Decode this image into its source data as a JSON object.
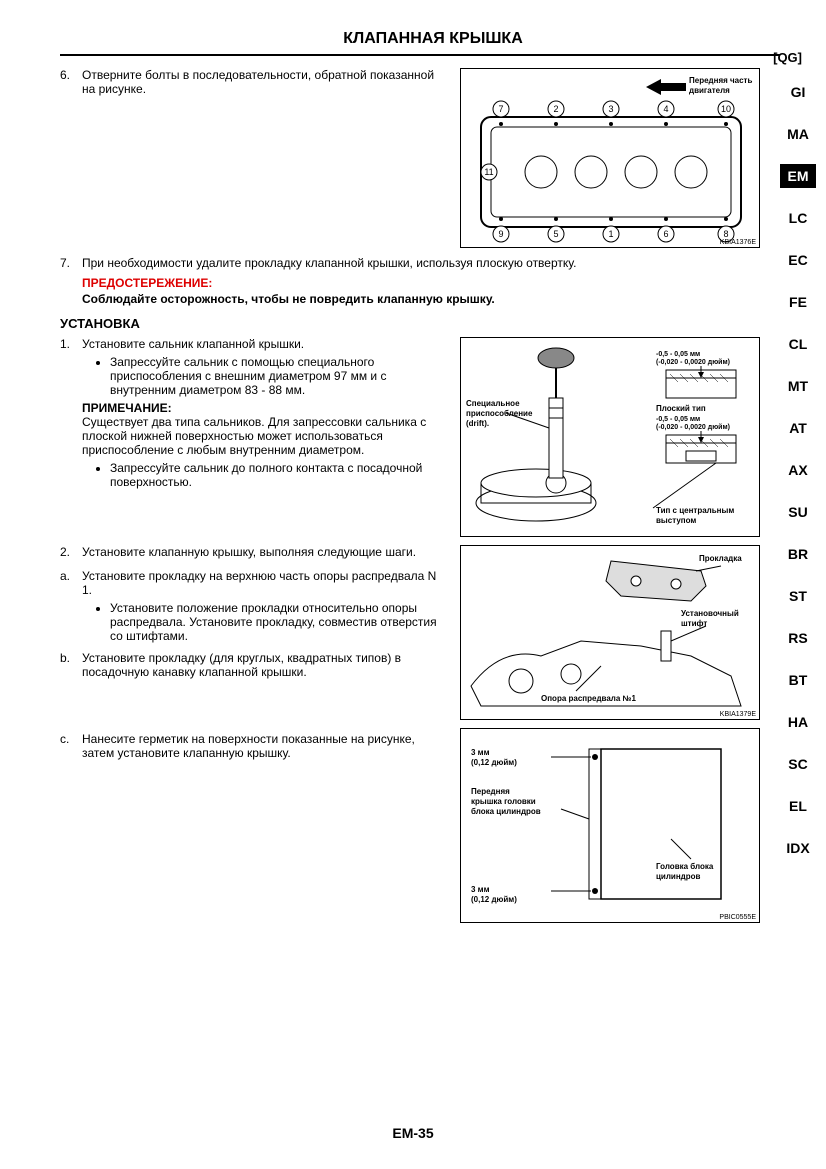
{
  "header": {
    "title": "КЛАПАННАЯ КРЫШКА",
    "subcode": "[QG]",
    "page_num": "EM-35"
  },
  "side_tabs": [
    {
      "label": "GI",
      "active": false
    },
    {
      "label": "MA",
      "active": false
    },
    {
      "label": "EM",
      "active": true
    },
    {
      "label": "LC",
      "active": false
    },
    {
      "label": "EC",
      "active": false
    },
    {
      "label": "FE",
      "active": false
    },
    {
      "label": "CL",
      "active": false
    },
    {
      "label": "MT",
      "active": false
    },
    {
      "label": "AT",
      "active": false
    },
    {
      "label": "AX",
      "active": false
    },
    {
      "label": "SU",
      "active": false
    },
    {
      "label": "BR",
      "active": false
    },
    {
      "label": "ST",
      "active": false
    },
    {
      "label": "RS",
      "active": false
    },
    {
      "label": "BT",
      "active": false
    },
    {
      "label": "HA",
      "active": false
    },
    {
      "label": "SC",
      "active": false
    },
    {
      "label": "EL",
      "active": false
    },
    {
      "label": "IDX",
      "active": false
    }
  ],
  "step6": {
    "num": "6.",
    "text": "Отверните болты в последовательности, обратной показанной на рисунке."
  },
  "step7": {
    "num": "7.",
    "text": "При необходимости удалите прокладку клапанной крышки, используя плоскую отвертку.",
    "caution_label": "ПРЕДОСТЕРЕЖЕНИЕ:",
    "caution_body": "Соблюдайте осторожность, чтобы не повредить клапанную крышку."
  },
  "install": {
    "heading": "УСТАНОВКА",
    "s1": {
      "num": "1.",
      "text": "Установите сальник клапанной крышки.",
      "b1": "Запрессуйте сальник с помощью специального приспособления с внешним диаметром 97 мм и с внутренним диаметром 83 - 88 мм.",
      "note_h": "ПРИМЕЧАНИЕ:",
      "note": "Существует два типа сальников. Для запрессовки сальника с плоской нижней поверхностью может использоваться приспособление с любым внутренним диаметром.",
      "b2": "Запрессуйте сальник до полного контакта с посадочной поверхностью."
    },
    "s2": {
      "num": "2.",
      "text": "Установите клапанную крышку, выполняя следующие шаги."
    },
    "sa": {
      "num": "a.",
      "text": "Установите прокладку на верхнюю часть опоры распредвала N 1.",
      "b1": "Установите положение прокладки относительно опоры распредвала. Установите прокладку, совместив отверстия со штифтами."
    },
    "sb": {
      "num": "b.",
      "text": "Установите прокладку (для круглых, квадратных типов) в посадочную канавку клапанной крышки."
    },
    "sc": {
      "num": "c.",
      "text": "Нанесите герметик на поверхности показанные на рисунке, затем установите клапанную крышку."
    }
  },
  "fig1": {
    "code": "KBIA1376E",
    "front_label": "Передняя часть двигателя",
    "bolts": [
      "①",
      "②",
      "③",
      "④",
      "⑤",
      "⑥",
      "⑦",
      "⑧",
      "⑨",
      "⑩",
      "⑪"
    ]
  },
  "fig2": {
    "code": "",
    "drift": "Специальное приспособление (drift).",
    "tol1": "-0,5 - 0,05 мм",
    "tol1b": "(-0,020 - 0,0020 дюйм)",
    "flat": "Плоский тип",
    "tol2": "-0,5 - 0,05 мм",
    "tol2b": "(-0,020 - 0,0020 дюйм)",
    "center": "Тип с центральным выступом"
  },
  "fig3": {
    "code": "KBIA1379E",
    "gasket": "Прокладка",
    "pin": "Установочный штифт",
    "bracket": "Опора распредвала №1"
  },
  "fig4": {
    "code": "PBIC0555E",
    "d1": "3 мм",
    "d1b": "(0,12 дюйм)",
    "front_cover": "Передняя крышка головки блока цилиндров",
    "head": "Головка блока цилиндров",
    "d2": "3 мм",
    "d2b": "(0,12 дюйм)"
  },
  "colors": {
    "line": "#000",
    "caution": "#d00"
  }
}
